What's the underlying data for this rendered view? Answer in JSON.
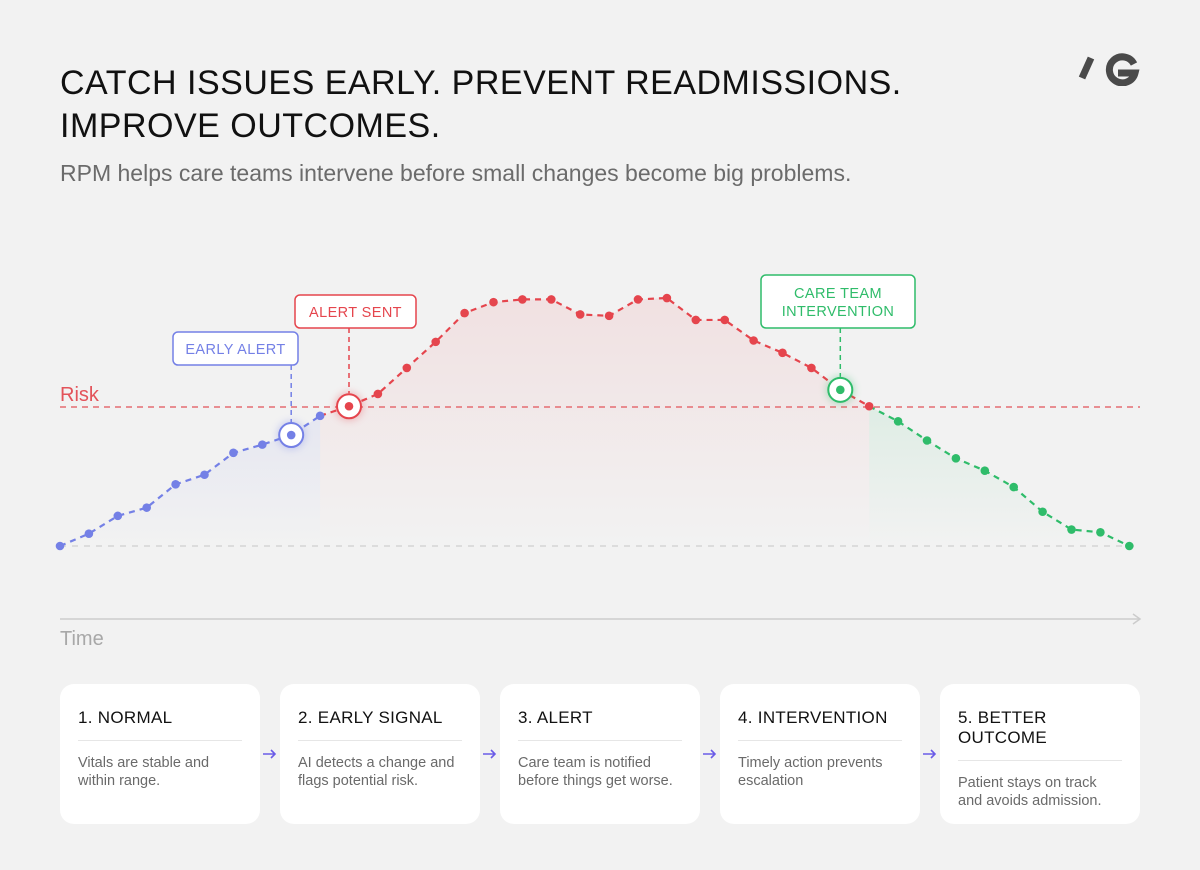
{
  "header": {
    "title_line1": "CATCH ISSUES EARLY. PREVENT READMISSIONS.",
    "title_line2": "IMPROVE OUTCOMES.",
    "subtitle": "RPM helps care teams intervene before small changes become big problems."
  },
  "logo": {
    "icon": "brand-logo-icon",
    "color": "#4a4a4a"
  },
  "chart_data": {
    "type": "line",
    "xlabel": "Time",
    "threshold": {
      "label": "Risk",
      "color": "#e3535a"
    },
    "series": [
      {
        "phase": "normal",
        "color": "#7480e6",
        "values": [
          0,
          9,
          22,
          28,
          45,
          52,
          68,
          74,
          81,
          95
        ]
      },
      {
        "phase": "alert",
        "color": "#e5454d",
        "values": [
          102,
          111,
          130,
          149,
          170,
          178,
          180,
          180,
          169,
          168,
          180,
          181,
          165,
          165,
          150,
          141,
          130,
          114,
          102
        ]
      },
      {
        "phase": "intervention",
        "color": "#2fbc6a",
        "values": [
          91,
          77,
          64,
          55,
          43,
          25,
          12,
          10,
          0
        ]
      }
    ],
    "markers": [
      {
        "label": "EARLY ALERT",
        "color": "#7480e6"
      },
      {
        "label": "ALERT SENT",
        "color": "#e5454d"
      },
      {
        "label": "CARE  TEAM\nINTERVENTION",
        "color": "#2fbc6a"
      }
    ]
  },
  "steps": [
    {
      "title": "1. NORMAL",
      "desc": "Vitals are stable and within range."
    },
    {
      "title": "2. EARLY SIGNAL",
      "desc": "AI detects a change and flags potential risk."
    },
    {
      "title": "3. ALERT",
      "desc": "Care team is notified before things get worse."
    },
    {
      "title": "4. INTERVENTION",
      "desc": "Timely action prevents escalation"
    },
    {
      "title": "5. BETTER OUTCOME",
      "desc": "Patient stays on track and avoids admission."
    }
  ],
  "step_arrow_color": "#6b5ce7"
}
